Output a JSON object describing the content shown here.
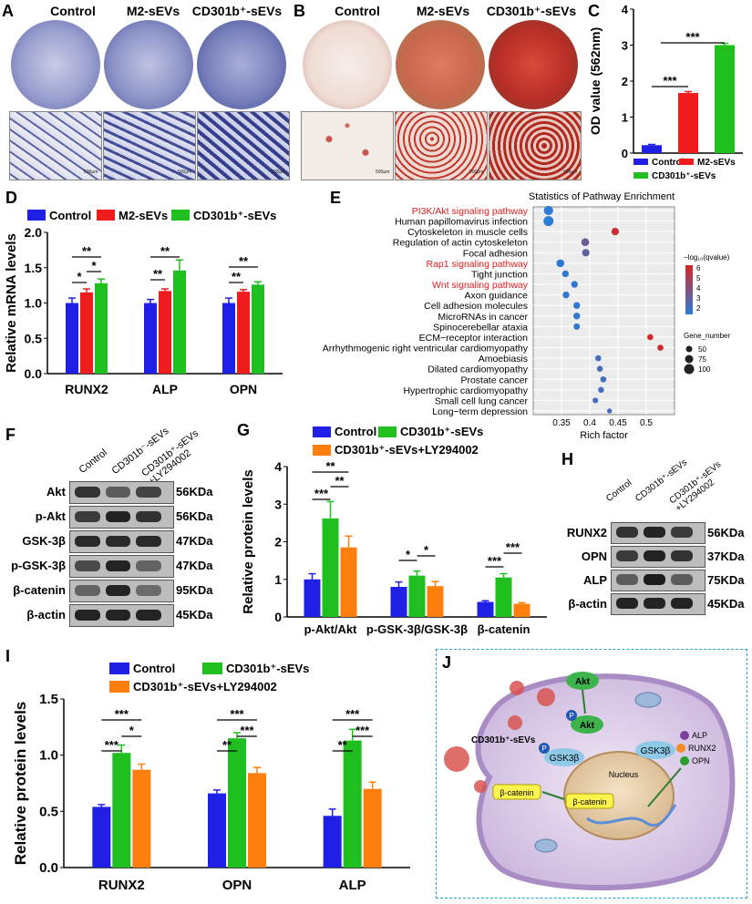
{
  "panels": {
    "A": {
      "label": "A",
      "titles": [
        "Control",
        "M2-sEVs",
        "CD301b⁺-sEVs"
      ],
      "scale": "500μm"
    },
    "B": {
      "label": "B",
      "titles": [
        "Control",
        "M2-sEVs",
        "CD301b⁺-sEVs"
      ],
      "scale": "500μm"
    },
    "C": {
      "label": "C"
    },
    "D": {
      "label": "D"
    },
    "E": {
      "label": "E"
    },
    "F": {
      "label": "F",
      "lanes": [
        "Control",
        "CD301b⁻-sEVs",
        "CD301b⁺-sEVs\n+LY294002"
      ],
      "rows": [
        {
          "protein": "Akt",
          "size": "56KDa"
        },
        {
          "protein": "p-Akt",
          "size": "56KDa"
        },
        {
          "protein": "GSK-3β",
          "size": "47KDa"
        },
        {
          "protein": "p-GSK-3β",
          "size": "47KDa"
        },
        {
          "protein": "β-catenin",
          "size": "95KDa"
        },
        {
          "protein": "β-actin",
          "size": "45KDa"
        }
      ]
    },
    "G": {
      "label": "G"
    },
    "H": {
      "label": "H",
      "lanes": [
        "Control",
        "CD301b⁺-sEVs",
        "CD301b⁺-sEVs\n+LY294002"
      ],
      "rows": [
        {
          "protein": "RUNX2",
          "size": "56KDa"
        },
        {
          "protein": "OPN",
          "size": "37KDa"
        },
        {
          "protein": "ALP",
          "size": "75KDa"
        },
        {
          "protein": "β-actin",
          "size": "45KDa"
        }
      ]
    },
    "I": {
      "label": "I"
    },
    "J": {
      "label": "J",
      "texts": {
        "akt1": "Akt",
        "p1": "P",
        "akt2": "Akt",
        "gsk": "GSK3β",
        "p2": "P",
        "gsk2": "GSK3β",
        "sevs": "CD301b⁺-sEVs",
        "nucleus": "Nucleus",
        "bcat1": "β-catenin",
        "bcat2": "β-catenin",
        "alp": "ALP",
        "runx2": "RUNX2",
        "opn": "OPN"
      }
    }
  },
  "colors": {
    "blue": "#1f1fe6",
    "red": "#ee1c1c",
    "green": "#1fbf1f",
    "orange": "#ff7f0e",
    "highlight": "#e31a1c",
    "dot_low": "#2c7bd6",
    "dot_high": "#d62728"
  },
  "chart_data": [
    {
      "id": "C",
      "type": "bar",
      "categories": [
        "Control",
        "M2-sEVs",
        "CD301b⁺-sEVs"
      ],
      "values": [
        0.22,
        1.67,
        3.0
      ],
      "errors": [
        0.02,
        0.04,
        0.05
      ],
      "colors": [
        "#1f1fe6",
        "#ee1c1c",
        "#1fbf1f"
      ],
      "ylabel": "OD value (562nm)",
      "ylim": [
        0,
        4
      ],
      "yticks": [
        0,
        1,
        2,
        3,
        4
      ],
      "legend": [
        "Control",
        "M2-sEVs",
        "CD301b⁺-sEVs"
      ],
      "significance": [
        "***",
        "***"
      ]
    },
    {
      "id": "D",
      "type": "bar",
      "categories": [
        "RUNX2",
        "ALP",
        "OPN"
      ],
      "series": [
        {
          "name": "Control",
          "color": "#1f1fe6",
          "values": [
            1.0,
            1.0,
            1.0
          ],
          "errors": [
            0.07,
            0.05,
            0.07
          ]
        },
        {
          "name": "M2-sEVs",
          "color": "#ee1c1c",
          "values": [
            1.15,
            1.17,
            1.16
          ],
          "errors": [
            0.05,
            0.03,
            0.03
          ]
        },
        {
          "name": "CD301b⁺-sEVs",
          "color": "#1fbf1f",
          "values": [
            1.28,
            1.46,
            1.26
          ],
          "errors": [
            0.06,
            0.15,
            0.04
          ]
        }
      ],
      "ylabel": "Relative mRNA levels",
      "ylim": [
        0,
        2.0
      ],
      "yticks": [
        "0.0",
        "0.5",
        "1.0",
        "1.5",
        "2.0"
      ],
      "significance": [
        "**",
        "*",
        "*",
        "**",
        "**",
        "**",
        "**"
      ]
    },
    {
      "id": "E",
      "type": "scatter",
      "title": "Statistics of Pathway Enrichment",
      "xlabel": "Rich factor",
      "xlim": [
        0.3,
        0.55
      ],
      "xticks": [
        0.35,
        0.4,
        0.45,
        0.5
      ],
      "pathways": [
        {
          "name": "PI3K/Akt signaling pathway",
          "x": 0.327,
          "q": 2.0,
          "n": 90,
          "highlight": true
        },
        {
          "name": "Human papillomavirus infection",
          "x": 0.327,
          "q": 2.0,
          "n": 100,
          "highlight": false
        },
        {
          "name": "Cytoskeleton in muscle cells",
          "x": 0.445,
          "q": 5.8,
          "n": 65,
          "highlight": false
        },
        {
          "name": "Regulation of actin cytoskeleton",
          "x": 0.392,
          "q": 3.5,
          "n": 70,
          "highlight": false
        },
        {
          "name": "Focal adhesion",
          "x": 0.393,
          "q": 3.2,
          "n": 65,
          "highlight": false
        },
        {
          "name": "Rap1 signaling pathway",
          "x": 0.348,
          "q": 2.1,
          "n": 70,
          "highlight": true
        },
        {
          "name": "Tight junction",
          "x": 0.357,
          "q": 2.1,
          "n": 55,
          "highlight": false
        },
        {
          "name": "Wnt signaling pathway",
          "x": 0.373,
          "q": 2.1,
          "n": 55,
          "highlight": true
        },
        {
          "name": "Axon guidance",
          "x": 0.358,
          "q": 2.1,
          "n": 55,
          "highlight": false
        },
        {
          "name": "Cell adhesion molecules",
          "x": 0.377,
          "q": 2.2,
          "n": 55,
          "highlight": false
        },
        {
          "name": "MicroRNAs in cancer",
          "x": 0.377,
          "q": 2.2,
          "n": 55,
          "highlight": false
        },
        {
          "name": "Spinocerebellar ataxia",
          "x": 0.377,
          "q": 2.2,
          "n": 50,
          "highlight": false
        },
        {
          "name": "ECM−receptor interaction",
          "x": 0.507,
          "q": 6.0,
          "n": 45,
          "highlight": false
        },
        {
          "name": "Arrhythmogenic right ventricular cardiomyopathy",
          "x": 0.525,
          "q": 6.2,
          "n": 45,
          "highlight": false
        },
        {
          "name": "Amoebiasis",
          "x": 0.415,
          "q": 2.6,
          "n": 45,
          "highlight": false
        },
        {
          "name": "Dilated cardiomyopathy",
          "x": 0.418,
          "q": 2.6,
          "n": 45,
          "highlight": false
        },
        {
          "name": "Prostate cancer",
          "x": 0.424,
          "q": 2.6,
          "n": 45,
          "highlight": false
        },
        {
          "name": "Hypertrophic cardiomyopathy",
          "x": 0.42,
          "q": 2.6,
          "n": 45,
          "highlight": false
        },
        {
          "name": "Small cell lung cancer",
          "x": 0.41,
          "q": 2.5,
          "n": 40,
          "highlight": false
        },
        {
          "name": "Long−term depression",
          "x": 0.435,
          "q": 2.6,
          "n": 30,
          "highlight": false
        }
      ],
      "legend_color_title": "−log₁₀(qvalue)",
      "legend_color_ticks": [
        "6",
        "5",
        "4",
        "3",
        "2"
      ],
      "legend_size_title": "Gene_number",
      "legend_size_values": [
        "50",
        "75",
        "100"
      ]
    },
    {
      "id": "G",
      "type": "bar",
      "categories": [
        "p-Akt/Akt",
        "p-GSK-3β/GSK-3β",
        "β-catenin"
      ],
      "series": [
        {
          "name": "Control",
          "color": "#1f1fe6",
          "values": [
            1.0,
            0.8,
            0.4
          ],
          "errors": [
            0.15,
            0.13,
            0.03
          ]
        },
        {
          "name": "CD301b⁺-sEVs",
          "color": "#1fbf1f",
          "values": [
            2.62,
            1.1,
            1.05
          ],
          "errors": [
            0.45,
            0.12,
            0.1
          ]
        },
        {
          "name": "CD301b⁺-sEVs+LY294002",
          "color": "#ff7f0e",
          "values": [
            1.85,
            0.82,
            0.35
          ],
          "errors": [
            0.3,
            0.12,
            0.03
          ]
        }
      ],
      "ylabel": "Relative protein levels",
      "ylim": [
        0,
        4
      ],
      "yticks": [
        0,
        1,
        2,
        3,
        4
      ],
      "significance": [
        "**",
        "***",
        "**",
        "*",
        "*",
        "***",
        "***"
      ]
    },
    {
      "id": "I",
      "type": "bar",
      "categories": [
        "RUNX2",
        "OPN",
        "ALP"
      ],
      "series": [
        {
          "name": "Control",
          "color": "#1f1fe6",
          "values": [
            0.54,
            0.66,
            0.46
          ],
          "errors": [
            0.02,
            0.03,
            0.06
          ]
        },
        {
          "name": "CD301b⁺-sEVs",
          "color": "#1fbf1f",
          "values": [
            1.02,
            1.15,
            1.13
          ],
          "errors": [
            0.07,
            0.05,
            0.1
          ]
        },
        {
          "name": "CD301b⁺-sEVs+LY294002",
          "color": "#ff7f0e",
          "values": [
            0.87,
            0.84,
            0.7
          ],
          "errors": [
            0.05,
            0.05,
            0.06
          ]
        }
      ],
      "ylabel": "Relative protein levels",
      "ylim": [
        0,
        1.5
      ],
      "yticks": [
        "0.0",
        "0.5",
        "1.0",
        "1.5"
      ],
      "significance": [
        "***",
        "***",
        "*",
        "**",
        "***",
        "***",
        "**",
        "***",
        "***"
      ]
    }
  ]
}
